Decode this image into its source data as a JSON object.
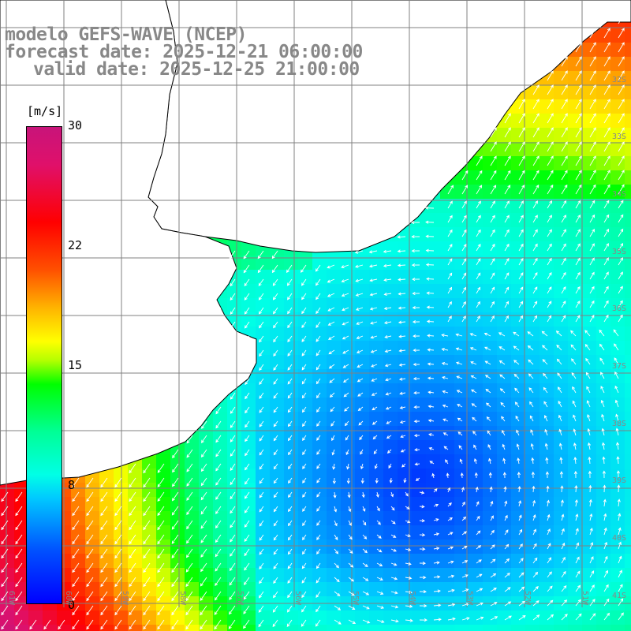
{
  "title": {
    "line1": "modelo GEFS-WAVE (NCEP)",
    "line2": "forecast date: 2025-12-21 06:00:00",
    "line3": "valid date: 2025-12-25 21:00:00"
  },
  "colorbar": {
    "unit": "[m/s]",
    "ticks": [
      "30",
      "22",
      "15",
      "8",
      "0"
    ]
  },
  "lat_labels": [
    "32S",
    "33S",
    "34S",
    "35S",
    "36S",
    "37S",
    "38S",
    "39S",
    "40S",
    "41S"
  ],
  "lon_labels": [
    "61W",
    "60W",
    "59W",
    "58W",
    "57W",
    "56W",
    "55W",
    "54W",
    "53W",
    "52W",
    "51W"
  ],
  "colors": {
    "land": "#ffffff",
    "coast": "#000000",
    "grid": "#808080",
    "arrow": "#ffffff",
    "title_text": "#888888"
  },
  "field_description": "wind speed field, low near 40S 55W, strong along coast"
}
